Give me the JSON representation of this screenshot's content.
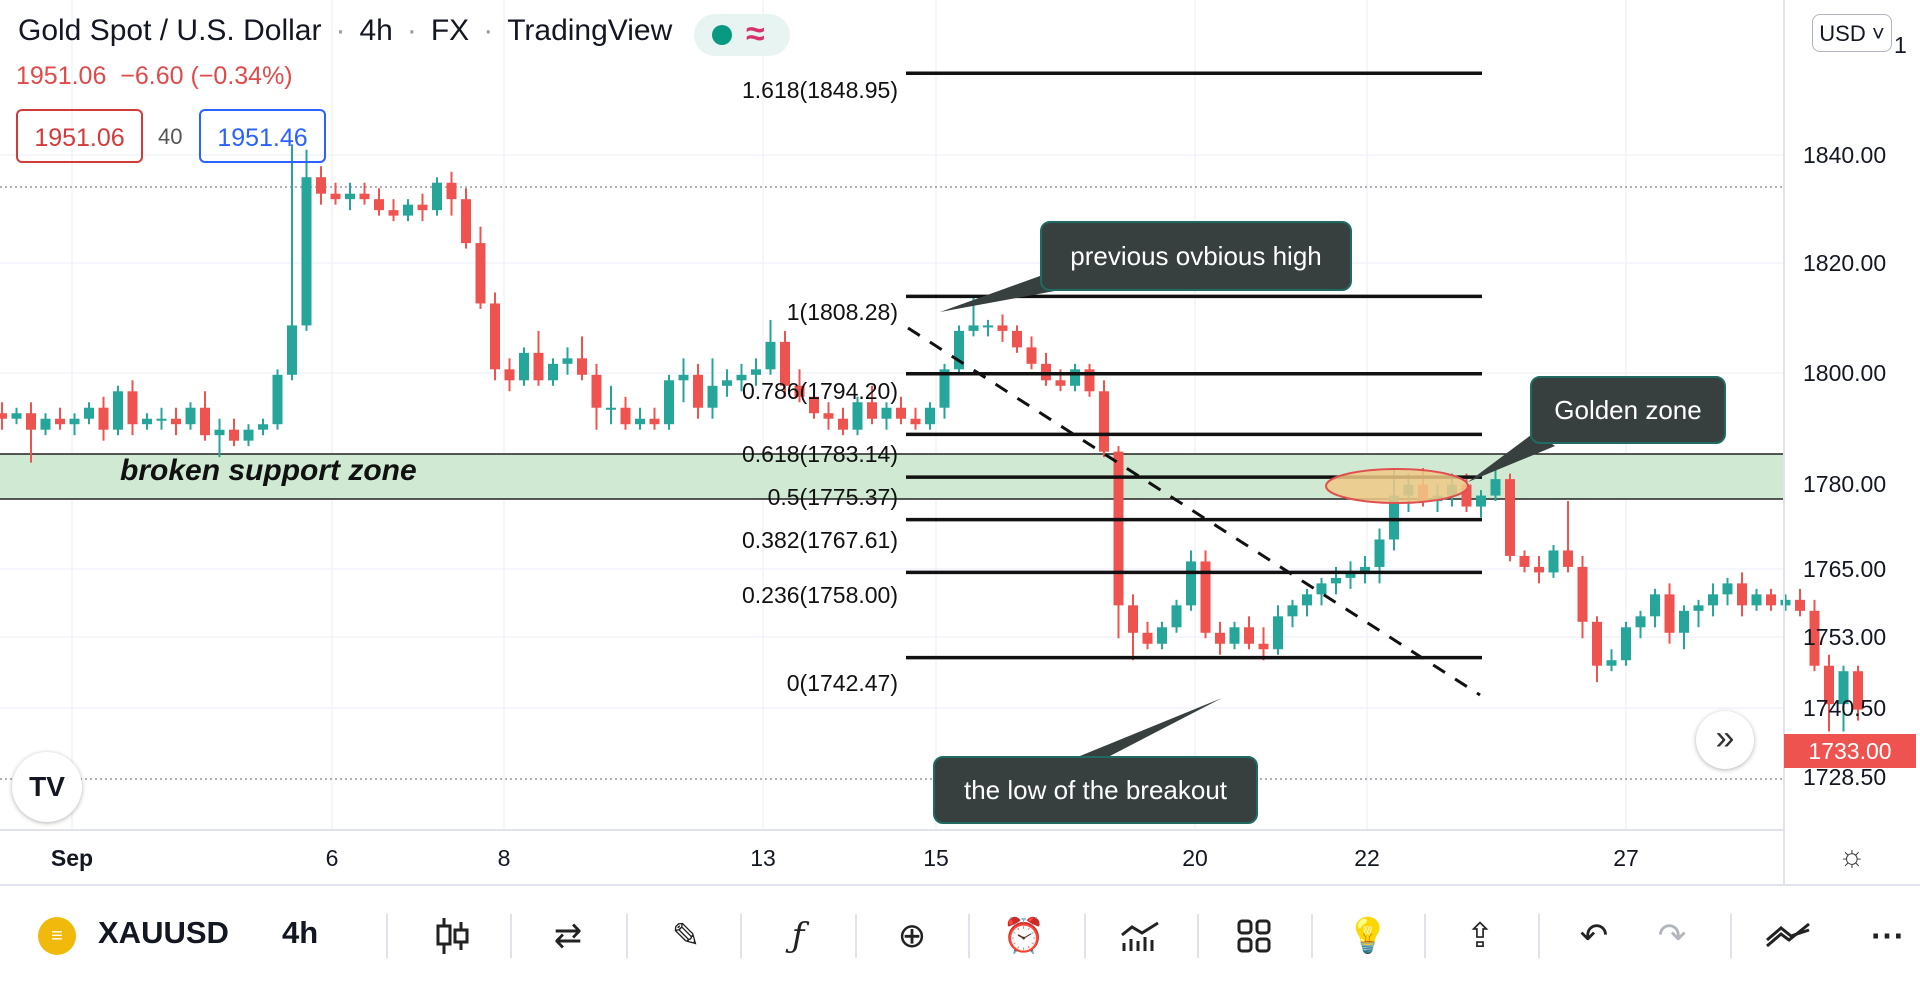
{
  "header": {
    "symbol_name": "Gold Spot / U.S. Dollar",
    "timeframe": "4h",
    "market": "FX",
    "source": "TradingView",
    "last": "1951.06",
    "change": "−6.60 (−0.34%)",
    "sell_price": "1951.06",
    "spread": "40",
    "buy_price": "1951.46",
    "currency": "USD ˅"
  },
  "annotations": {
    "zone_label": "broken support zone",
    "callout_high": "previous ovbious high",
    "callout_golden": "Golden zone",
    "callout_low": "the low of the breakout"
  },
  "fib_levels": [
    {
      "label": "1.618(1848.95)",
      "value": 1848.95
    },
    {
      "label": "1(1808.28)",
      "value": 1808.28
    },
    {
      "label": "0.786(1794.20)",
      "value": 1794.2
    },
    {
      "label": "0.618(1783.14)",
      "value": 1783.14
    },
    {
      "label": "0.5(1775.37)",
      "value": 1775.37
    },
    {
      "label": "0.382(1767.61)",
      "value": 1767.61
    },
    {
      "label": "0.236(1758.00)",
      "value": 1758.0
    },
    {
      "label": "0(1742.47)",
      "value": 1742.47
    }
  ],
  "price_axis": {
    "ticks": [
      "1840.00",
      "1820.00",
      "1800.00",
      "1780.00",
      "1765.00",
      "1753.00",
      "1740.50",
      "1728.50"
    ],
    "top_partial": "1",
    "last_price": "1733.00"
  },
  "time_axis": {
    "ticks": [
      {
        "label": "Sep",
        "bold": true
      },
      {
        "label": "6",
        "bold": false
      },
      {
        "label": "8",
        "bold": false
      },
      {
        "label": "13",
        "bold": false
      },
      {
        "label": "15",
        "bold": false
      },
      {
        "label": "20",
        "bold": false
      },
      {
        "label": "22",
        "bold": false
      },
      {
        "label": "27",
        "bold": false
      }
    ]
  },
  "toolbar": {
    "symbol": "XAUUSD",
    "timeframe": "4h",
    "tools": [
      "candles-icon",
      "compare-icon",
      "draw-icon",
      "indicators-icon",
      "add-icon",
      "alert-icon",
      "strategy-icon",
      "layout-icon",
      "ideas-icon",
      "share-icon",
      "undo-icon",
      "redo-icon",
      "trend-icon",
      "more-icon"
    ]
  },
  "colors": {
    "up": "#26a69a",
    "down": "#ef5350",
    "zone": "#cfe9d2",
    "golden_fill": "#f0c987",
    "golden_stroke": "#e05050"
  },
  "chart_data": {
    "type": "candlestick",
    "title": "Gold Spot / U.S. Dollar",
    "xlabel": "",
    "ylabel": "",
    "ylim": [
      1722,
      1855
    ],
    "candles": [
      [
        1787,
        1789,
        1784,
        1786
      ],
      [
        1786,
        1788,
        1785,
        1787
      ],
      [
        1787,
        1789,
        1778,
        1784
      ],
      [
        1784,
        1787,
        1783,
        1786
      ],
      [
        1786,
        1788,
        1784,
        1785
      ],
      [
        1785,
        1787,
        1783,
        1786
      ],
      [
        1786,
        1789,
        1785,
        1788
      ],
      [
        1788,
        1790,
        1782,
        1784
      ],
      [
        1784,
        1792,
        1783,
        1791
      ],
      [
        1791,
        1793,
        1783,
        1785
      ],
      [
        1785,
        1787,
        1784,
        1786
      ],
      [
        1786,
        1788,
        1784,
        1786
      ],
      [
        1786,
        1788,
        1783,
        1785
      ],
      [
        1785,
        1789,
        1784,
        1788
      ],
      [
        1788,
        1791,
        1782,
        1783
      ],
      [
        1783,
        1786,
        1779,
        1784
      ],
      [
        1784,
        1786,
        1781,
        1782
      ],
      [
        1782,
        1785,
        1781,
        1784
      ],
      [
        1784,
        1786,
        1783,
        1785
      ],
      [
        1785,
        1795,
        1784,
        1794
      ],
      [
        1794,
        1836,
        1793,
        1803
      ],
      [
        1803,
        1835,
        1802,
        1830
      ],
      [
        1830,
        1832,
        1825,
        1827
      ],
      [
        1827,
        1829,
        1825,
        1826
      ],
      [
        1826,
        1829,
        1824,
        1827
      ],
      [
        1827,
        1829,
        1825,
        1826
      ],
      [
        1826,
        1828,
        1823,
        1824
      ],
      [
        1824,
        1826,
        1822,
        1823
      ],
      [
        1823,
        1826,
        1822,
        1825
      ],
      [
        1825,
        1827,
        1822,
        1824
      ],
      [
        1824,
        1830,
        1823,
        1829
      ],
      [
        1829,
        1831,
        1823,
        1826
      ],
      [
        1826,
        1828,
        1817,
        1818
      ],
      [
        1818,
        1821,
        1806,
        1807
      ],
      [
        1807,
        1809,
        1793,
        1795
      ],
      [
        1795,
        1797,
        1791,
        1793
      ],
      [
        1793,
        1799,
        1792,
        1798
      ],
      [
        1798,
        1802,
        1792,
        1793
      ],
      [
        1793,
        1797,
        1792,
        1796
      ],
      [
        1796,
        1799,
        1794,
        1797
      ],
      [
        1797,
        1801,
        1793,
        1794
      ],
      [
        1794,
        1796,
        1784,
        1788
      ],
      [
        1788,
        1792,
        1785,
        1788
      ],
      [
        1788,
        1790,
        1784,
        1785
      ],
      [
        1785,
        1788,
        1784,
        1786
      ],
      [
        1786,
        1788,
        1784,
        1785
      ],
      [
        1785,
        1794,
        1784,
        1793
      ],
      [
        1793,
        1797,
        1789,
        1794
      ],
      [
        1794,
        1796,
        1786,
        1788
      ],
      [
        1788,
        1797,
        1786,
        1792
      ],
      [
        1792,
        1795,
        1790,
        1793
      ],
      [
        1793,
        1796,
        1791,
        1794
      ],
      [
        1794,
        1797,
        1792,
        1795
      ],
      [
        1795,
        1804,
        1794,
        1800
      ],
      [
        1800,
        1802,
        1790,
        1792
      ],
      [
        1792,
        1795,
        1789,
        1790
      ],
      [
        1790,
        1792,
        1786,
        1787
      ],
      [
        1787,
        1789,
        1784,
        1786
      ],
      [
        1786,
        1788,
        1783,
        1784
      ],
      [
        1784,
        1790,
        1783,
        1789
      ],
      [
        1789,
        1792,
        1785,
        1786
      ],
      [
        1786,
        1789,
        1784,
        1788
      ],
      [
        1788,
        1790,
        1785,
        1786
      ],
      [
        1786,
        1788,
        1784,
        1785
      ],
      [
        1785,
        1789,
        1784,
        1788
      ],
      [
        1788,
        1796,
        1786,
        1795
      ],
      [
        1795,
        1803,
        1794,
        1802
      ],
      [
        1802,
        1808,
        1801,
        1803
      ],
      [
        1803,
        1804,
        1801,
        1803
      ],
      [
        1803,
        1805,
        1800,
        1802
      ],
      [
        1802,
        1803,
        1798,
        1799
      ],
      [
        1799,
        1801,
        1795,
        1796
      ],
      [
        1796,
        1798,
        1792,
        1793
      ],
      [
        1793,
        1795,
        1791,
        1792
      ],
      [
        1792,
        1796,
        1791,
        1795
      ],
      [
        1795,
        1796,
        1790,
        1791
      ],
      [
        1791,
        1793,
        1779,
        1780
      ],
      [
        1780,
        1781,
        1746,
        1752
      ],
      [
        1752,
        1754,
        1742,
        1747
      ],
      [
        1747,
        1749,
        1744,
        1745
      ],
      [
        1745,
        1749,
        1744,
        1748
      ],
      [
        1748,
        1753,
        1747,
        1752
      ],
      [
        1752,
        1762,
        1751,
        1760
      ],
      [
        1760,
        1762,
        1746,
        1747
      ],
      [
        1747,
        1749,
        1743,
        1745
      ],
      [
        1745,
        1749,
        1744,
        1748
      ],
      [
        1748,
        1750,
        1744,
        1745
      ],
      [
        1745,
        1748,
        1742,
        1744
      ],
      [
        1744,
        1752,
        1743,
        1750
      ],
      [
        1750,
        1753,
        1748,
        1752
      ],
      [
        1752,
        1755,
        1750,
        1754
      ],
      [
        1754,
        1757,
        1752,
        1756
      ],
      [
        1756,
        1759,
        1754,
        1757
      ],
      [
        1757,
        1760,
        1755,
        1758
      ],
      [
        1758,
        1761,
        1756,
        1759
      ],
      [
        1759,
        1766,
        1756,
        1764
      ],
      [
        1764,
        1777,
        1762,
        1772
      ],
      [
        1772,
        1776,
        1769,
        1774
      ],
      [
        1774,
        1777,
        1770,
        1771
      ],
      [
        1771,
        1774,
        1769,
        1772
      ],
      [
        1772,
        1776,
        1770,
        1774
      ],
      [
        1774,
        1776,
        1769,
        1770
      ],
      [
        1770,
        1773,
        1768,
        1772
      ],
      [
        1772,
        1777,
        1771,
        1775
      ],
      [
        1775,
        1776,
        1760,
        1761
      ],
      [
        1761,
        1762,
        1758,
        1759
      ],
      [
        1759,
        1761,
        1756,
        1758
      ],
      [
        1758,
        1763,
        1757,
        1762
      ],
      [
        1762,
        1771,
        1758,
        1759
      ],
      [
        1759,
        1761,
        1746,
        1749
      ],
      [
        1749,
        1750,
        1738,
        1741
      ],
      [
        1741,
        1744,
        1740,
        1742
      ],
      [
        1742,
        1749,
        1741,
        1748
      ],
      [
        1748,
        1751,
        1746,
        1750
      ],
      [
        1750,
        1755,
        1748,
        1754
      ],
      [
        1754,
        1756,
        1745,
        1747
      ],
      [
        1747,
        1752,
        1744,
        1751
      ],
      [
        1751,
        1753,
        1748,
        1752
      ],
      [
        1752,
        1756,
        1750,
        1754
      ],
      [
        1754,
        1757,
        1752,
        1756
      ],
      [
        1756,
        1758,
        1750,
        1752
      ],
      [
        1752,
        1755,
        1751,
        1754
      ],
      [
        1754,
        1755,
        1751,
        1752
      ],
      [
        1752,
        1754,
        1751,
        1753
      ],
      [
        1753,
        1755,
        1750,
        1751
      ],
      [
        1751,
        1753,
        1740,
        1741
      ],
      [
        1741,
        1743,
        1729,
        1734
      ],
      [
        1734,
        1741,
        1729,
        1740
      ],
      [
        1740,
        1741,
        1731,
        1733
      ]
    ]
  }
}
